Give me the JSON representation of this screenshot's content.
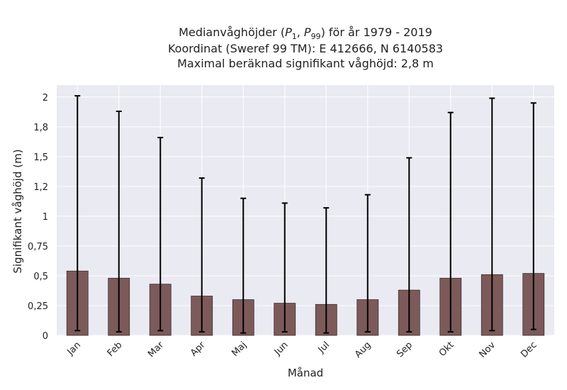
{
  "chart_data": {
    "type": "bar",
    "title": {
      "line1_prefix": "Medianvåghöjder (",
      "p_low": "P",
      "p_low_sub": "1",
      "p_sep": ", ",
      "p_high": "P",
      "p_high_sub": "99",
      "line1_suffix": ") för år 1979 - 2019",
      "line2": "Koordinat (Sweref 99 TM): E 412666, N 6140583",
      "line3": "Maximal beräknad signifikant våghöjd: 2,8 m"
    },
    "xlabel": "Månad",
    "ylabel": "Signifikant våghöjd (m)",
    "ylim": [
      0,
      2.1
    ],
    "yticks": [
      0,
      0.25,
      0.5,
      0.75,
      1,
      1.25,
      1.5,
      1.75,
      2
    ],
    "ytick_labels": [
      "0",
      "0,25",
      "0,5",
      "0,75",
      "1",
      "1,2",
      "1,5",
      "1,8",
      "2"
    ],
    "categories": [
      "Jan",
      "Feb",
      "Mar",
      "Apr",
      "Maj",
      "Jun",
      "Jul",
      "Aug",
      "Sep",
      "Okt",
      "Nov",
      "Dec"
    ],
    "series": [
      {
        "values": [
          0.54,
          0.48,
          0.43,
          0.33,
          0.3,
          0.27,
          0.26,
          0.3,
          0.38,
          0.48,
          0.51,
          0.52
        ],
        "p1": [
          0.04,
          0.03,
          0.04,
          0.03,
          0.02,
          0.03,
          0.02,
          0.03,
          0.03,
          0.03,
          0.04,
          0.05
        ],
        "p99": [
          2.01,
          1.88,
          1.66,
          1.32,
          1.15,
          1.11,
          1.07,
          1.18,
          1.49,
          1.87,
          1.99,
          1.95
        ]
      }
    ],
    "grid": true,
    "colors": {
      "bar": "#7d5a5a",
      "bar_edge": "#3a2c2c",
      "errorbar": "#000000",
      "plot_bg": "#eaeaf2",
      "grid": "#ffffff"
    }
  }
}
